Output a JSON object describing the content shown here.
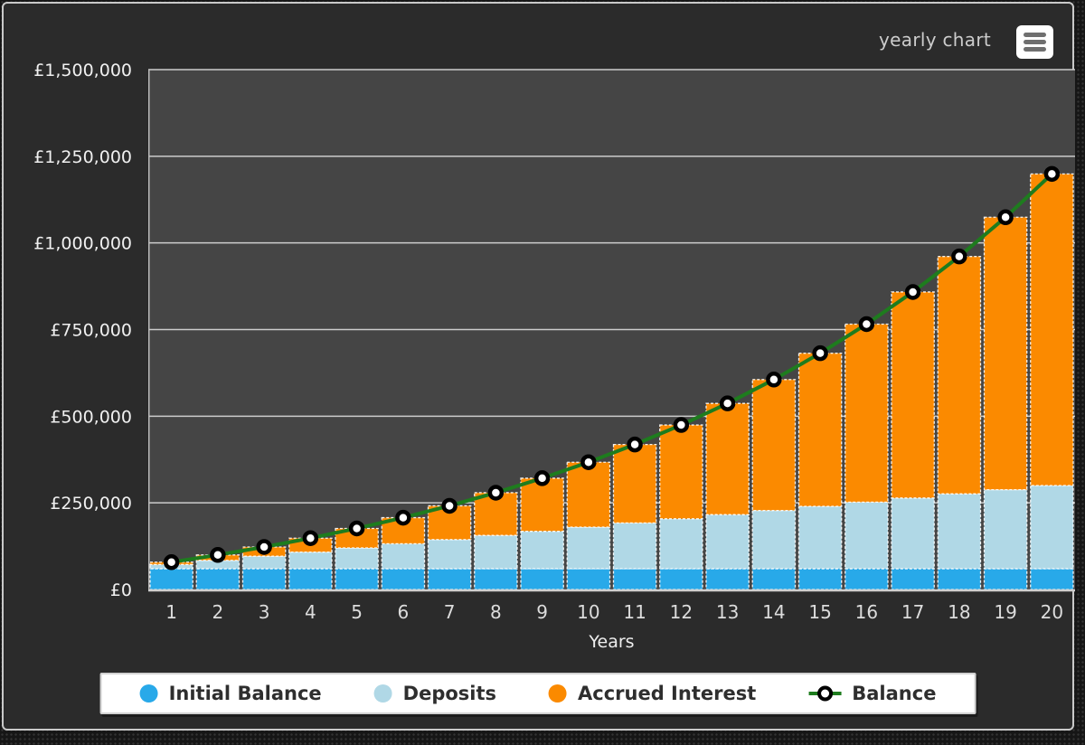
{
  "header": {
    "chart_type_label": "yearly chart",
    "menu_button": {
      "icon": "hamburger-menu-icon"
    }
  },
  "chart_data": {
    "type": "stacked-bar-line-combo",
    "title": "",
    "xlabel": "Years",
    "ylabel": "",
    "currency": "£",
    "grid": true,
    "legend_position": "bottom",
    "categories": [
      "1",
      "2",
      "3",
      "4",
      "5",
      "6",
      "7",
      "8",
      "9",
      "10",
      "11",
      "12",
      "13",
      "14",
      "15",
      "16",
      "17",
      "18",
      "19",
      "20"
    ],
    "y_axis": {
      "min": 0,
      "max": 1500000,
      "tick_interval": 250000,
      "ticks": [
        {
          "value": 0,
          "label": "£0"
        },
        {
          "value": 250000,
          "label": "£250,000"
        },
        {
          "value": 500000,
          "label": "£500,000"
        },
        {
          "value": 750000,
          "label": "£750,000"
        },
        {
          "value": 1000000,
          "label": "£1,000,000"
        },
        {
          "value": 1250000,
          "label": "£1,250,000"
        },
        {
          "value": 1500000,
          "label": "£1,500,000"
        }
      ]
    },
    "series": [
      {
        "name": "Initial Balance",
        "type": "bar",
        "color": "#28a9e9",
        "values": [
          60000,
          60000,
          60000,
          60000,
          60000,
          60000,
          60000,
          60000,
          60000,
          60000,
          60000,
          60000,
          60000,
          60000,
          60000,
          60000,
          60000,
          60000,
          60000,
          60000
        ]
      },
      {
        "name": "Deposits",
        "type": "bar",
        "color": "#b0d8e6",
        "values": [
          12000,
          24000,
          36000,
          48000,
          60000,
          72000,
          84000,
          96000,
          108000,
          120000,
          132000,
          144000,
          156000,
          168000,
          180000,
          192000,
          204000,
          216000,
          228000,
          240000
        ]
      },
      {
        "name": "Accrued Interest",
        "type": "bar",
        "color": "#fb8a00",
        "values": [
          6848,
          15670,
          26672,
          40084,
          56156,
          75167,
          97426,
          123273,
          153082,
          187268,
          226292,
          270658,
          320930,
          377719,
          441710,
          513661,
          594404,
          684856,
          786034,
          899069
        ]
      },
      {
        "name": "Balance",
        "type": "line",
        "color": "#1e7c1e",
        "marker": "circle-white-black-ring",
        "values": [
          78848,
          99670,
          122672,
          148084,
          176156,
          207167,
          241426,
          279273,
          321082,
          367268,
          418292,
          474658,
          536930,
          605719,
          681710,
          765661,
          858404,
          960856,
          1074034,
          1199069
        ]
      }
    ],
    "colors": {
      "plot_background": "#454545",
      "panel_background": "#2b2b2b",
      "gridline": "#cccccc",
      "axis_text": "#f0f0f0",
      "x_axis_text": "#dcdcdc",
      "marker_fill": "#ffffff",
      "marker_ring": "#000000"
    }
  },
  "legend": {
    "items": [
      {
        "label": "Initial Balance",
        "swatch": "dot",
        "color": "#28a9e9"
      },
      {
        "label": "Deposits",
        "swatch": "dot",
        "color": "#b0d8e6"
      },
      {
        "label": "Accrued Interest",
        "swatch": "dot",
        "color": "#fb8a00"
      },
      {
        "label": "Balance",
        "swatch": "line-marker",
        "color": "#1e7c1e"
      }
    ]
  }
}
